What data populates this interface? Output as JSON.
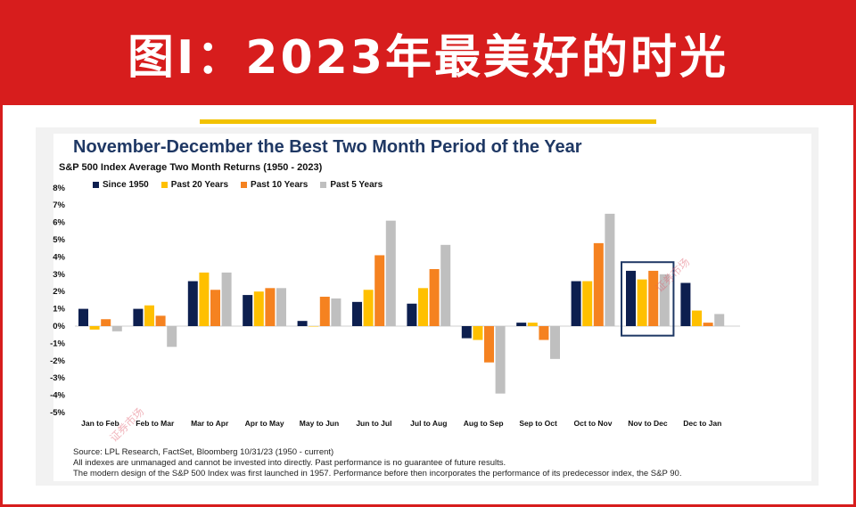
{
  "banner": {
    "title": "图Ⅰ：2023年最美好的时光"
  },
  "chart_data": {
    "type": "bar",
    "title": "November-December the Best Two Month Period of the Year",
    "subtitle": "S&P 500 Index Average Two Month Returns (1950 - 2023)",
    "categories": [
      "Jan to Feb",
      "Feb to Mar",
      "Mar to Apr",
      "Apr to May",
      "May to Jun",
      "Jun to Jul",
      "Jul to Aug",
      "Aug to Sep",
      "Sep to Oct",
      "Oct to Nov",
      "Nov to Dec",
      "Dec to Jan"
    ],
    "series": [
      {
        "name": "Since 1950",
        "color": "#0d1f4f",
        "values": [
          1.0,
          1.0,
          2.6,
          1.8,
          0.3,
          1.4,
          1.3,
          -0.7,
          0.2,
          2.6,
          3.2,
          2.5
        ]
      },
      {
        "name": "Past 20 Years",
        "color": "#ffc000",
        "values": [
          -0.2,
          1.2,
          3.1,
          2.0,
          0.0,
          2.1,
          2.2,
          -0.8,
          0.2,
          2.6,
          2.7,
          0.9
        ]
      },
      {
        "name": "Past 10 Years",
        "color": "#f58220",
        "values": [
          0.4,
          0.6,
          2.1,
          2.2,
          1.7,
          4.1,
          3.3,
          -2.1,
          -0.8,
          4.8,
          3.2,
          0.2
        ]
      },
      {
        "name": "Past 5 Years",
        "color": "#bfbfbf",
        "values": [
          -0.3,
          -1.2,
          3.1,
          2.2,
          1.6,
          6.1,
          4.7,
          -3.9,
          -1.9,
          6.5,
          3.0,
          0.7
        ]
      }
    ],
    "yticks": [
      "8%",
      "7%",
      "6%",
      "5%",
      "4%",
      "3%",
      "2%",
      "1%",
      "0%",
      "-1%",
      "-2%",
      "-3%",
      "-4%",
      "-5%"
    ],
    "ylim": [
      -5,
      8
    ],
    "highlight_category": "Nov to Dec"
  },
  "source": {
    "line1": "Source: LPL Research, FactSet, Bloomberg 10/31/23  (1950 - current)",
    "line2": "All indexes are unmanaged and cannot be invested into directly. Past performance is no guarantee of future results.",
    "line3": "The modern design of the S&P 500 Index was first launched in 1957. Performance before then incorporates the performance of its  predecessor index, the S&P 90."
  },
  "watermark": {
    "text": "证券市场"
  }
}
